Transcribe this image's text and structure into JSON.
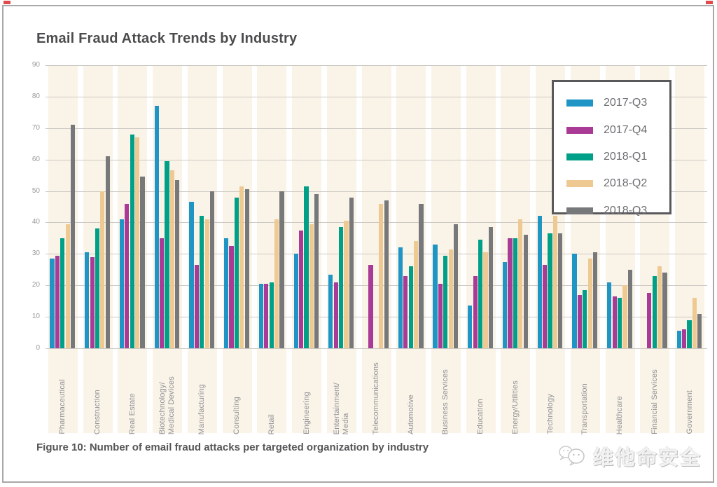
{
  "page": {
    "title": "Email Fraud Attack Trends by Industry",
    "caption": "Figure 10: Number of email fraud attacks per targeted organization by industry",
    "watermark_text": "维他命安全"
  },
  "colors": {
    "series_blue": "#1e95c5",
    "series_magenta": "#a93b96",
    "series_teal": "#009f88",
    "series_tan": "#eeca92",
    "series_gray": "#77787a",
    "stripe_cream": "#faf3e8",
    "gridline": "#ccc9c5",
    "title_text": "#4c4c4e",
    "axis_text": "#97999b",
    "legend_border": "#59595b"
  },
  "chart_data": {
    "type": "bar",
    "title": "Email Fraud Attack Trends by Industry",
    "xlabel": "",
    "ylabel": "",
    "ylim": [
      0,
      90
    ],
    "yticks": [
      0,
      10,
      20,
      30,
      40,
      50,
      60,
      70,
      80,
      90
    ],
    "grid": true,
    "legend_position": "top-right",
    "categories": [
      "Pharmaceutical",
      "Construction",
      "Real Estate",
      "Biotechnology/\nMedical Devices",
      "Manufacturing",
      "Consulting",
      "Retail",
      "Engineering",
      "Entertainment/\nMedia",
      "Telecommunications",
      "Automotive",
      "Business Services",
      "Education",
      "Energy/Utilities",
      "Technology",
      "Transportation",
      "Healthcare",
      "Financial Services",
      "Government"
    ],
    "series": [
      {
        "name": "2017-Q3",
        "color": "#1e95c5",
        "values": [
          28.5,
          30.5,
          41,
          77,
          46.5,
          35,
          20.5,
          30,
          23.5,
          null,
          32,
          33,
          13.5,
          27.5,
          42,
          30,
          21,
          null,
          5.5
        ]
      },
      {
        "name": "2017-Q4",
        "color": "#a93b96",
        "values": [
          29.5,
          29,
          46,
          35,
          26.5,
          32.5,
          20.5,
          37.5,
          21,
          26.5,
          23,
          20.5,
          23,
          35,
          26.5,
          17,
          16.5,
          17.5,
          6
        ]
      },
      {
        "name": "2018-Q1",
        "color": "#009f88",
        "values": [
          35,
          38,
          68,
          59.5,
          42,
          48,
          21,
          51.5,
          38.5,
          null,
          26,
          29.5,
          34.5,
          35,
          36.5,
          18.5,
          16,
          23,
          9
        ]
      },
      {
        "name": "2018-Q2",
        "color": "#eeca92",
        "values": [
          39.5,
          50,
          67,
          56.5,
          41,
          51.5,
          41,
          39.5,
          40.5,
          46,
          34,
          31.5,
          30.5,
          41,
          42,
          28.5,
          20,
          26,
          16
        ]
      },
      {
        "name": "2018-Q3",
        "color": "#77787a",
        "values": [
          71,
          61,
          54.5,
          53.5,
          50,
          50.5,
          50,
          49,
          48,
          47,
          46,
          39.5,
          38.5,
          36,
          36.5,
          30.5,
          25,
          24,
          11
        ]
      }
    ]
  }
}
